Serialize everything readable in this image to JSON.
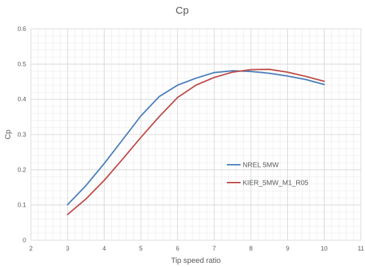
{
  "chart_data": {
    "type": "line",
    "title": "Cp",
    "xlabel": "Tip speed ratio",
    "ylabel": "Cp",
    "xlim": [
      2,
      11
    ],
    "ylim": [
      0,
      0.6
    ],
    "xticks": [
      2,
      3,
      4,
      5,
      6,
      7,
      8,
      9,
      10,
      11
    ],
    "yticks": [
      0,
      0.1,
      0.2,
      0.3,
      0.4,
      0.5,
      0.6
    ],
    "xtick_labels": [
      "2",
      "3",
      "4",
      "5",
      "6",
      "7",
      "8",
      "9",
      "10",
      "11"
    ],
    "ytick_labels": [
      "0",
      "0.1",
      "0.2",
      "0.3",
      "0.4",
      "0.5",
      "0.6"
    ],
    "grid": true,
    "legend_position": "center-right",
    "series": [
      {
        "name": "NREL 5MW",
        "color": "#4a7ebb",
        "x": [
          3,
          3.5,
          4,
          4.5,
          5,
          5.5,
          6,
          6.5,
          7,
          7.5,
          8,
          8.5,
          9,
          9.5,
          10
        ],
        "y": [
          0.101,
          0.155,
          0.218,
          0.285,
          0.353,
          0.408,
          0.44,
          0.46,
          0.476,
          0.481,
          0.479,
          0.474,
          0.466,
          0.456,
          0.442
        ]
      },
      {
        "name": "KIER_5MW_M1_R05",
        "color": "#be4b48",
        "x": [
          3,
          3.5,
          4,
          4.5,
          5,
          5.5,
          6,
          6.5,
          7,
          7.5,
          8,
          8.5,
          9,
          9.5,
          10
        ],
        "y": [
          0.073,
          0.117,
          0.17,
          0.23,
          0.292,
          0.351,
          0.405,
          0.44,
          0.462,
          0.477,
          0.484,
          0.485,
          0.477,
          0.465,
          0.451
        ]
      }
    ]
  }
}
